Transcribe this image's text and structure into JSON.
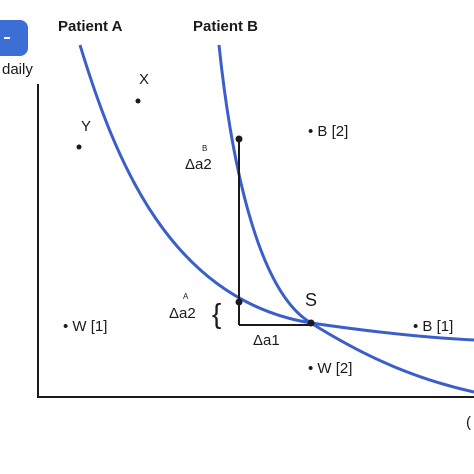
{
  "labels": {
    "patient_a": "Patient A",
    "patient_b": "Patient B",
    "y_axis_fragment": "daily",
    "x_axis_fragment": "(",
    "point_x": "X",
    "point_y": "Y",
    "point_b2": "• B [2]",
    "point_b1": "• B [1]",
    "point_w1": "• W [1]",
    "point_w2": "• W [2]",
    "point_s": "S",
    "sup_b": "B",
    "delta_a2_b": "Δa2",
    "sup_a": "A",
    "delta_a2_a": "Δa2",
    "brace": "{",
    "delta_a1": "Δa1"
  },
  "colors": {
    "curve": "#3a5fc8",
    "badge": "#3b6fd6",
    "axis": "#1a1a1a"
  },
  "icons": {
    "corner_badge": "blue-rounded-badge"
  }
}
